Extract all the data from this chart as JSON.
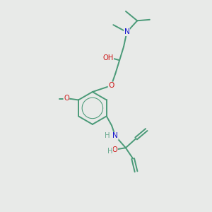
{
  "bg_color": "#e8eae8",
  "bond_color": "#4a9a78",
  "atom_N_color": "#1515cc",
  "atom_O_color": "#cc1515",
  "atom_H_color": "#6aaa90",
  "lw": 1.4,
  "fs": 7.2,
  "xlim": [
    0,
    10
  ],
  "ylim": [
    0,
    10
  ]
}
